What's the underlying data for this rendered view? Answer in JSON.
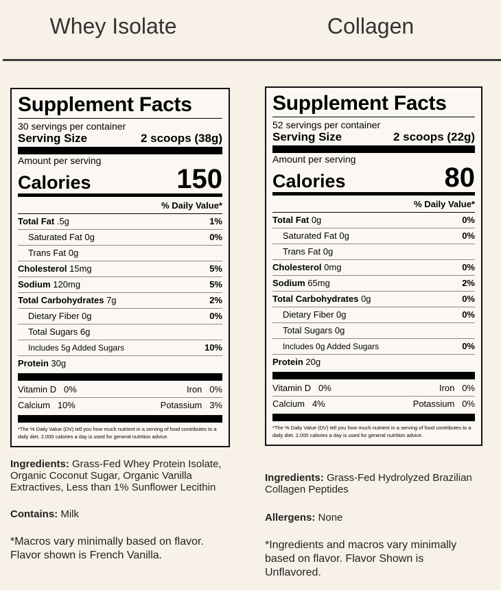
{
  "products": [
    {
      "name": "Whey Isolate",
      "facts": {
        "title": "Supplement Facts",
        "servings": "30 servings per container",
        "serving_size_label": "Serving Size",
        "serving_size": "2 scoops (38g)",
        "amount_label": "Amount per serving",
        "calories_label": "Calories",
        "calories": "150",
        "dv_header": "% Daily Value*",
        "rows": [
          {
            "label": "Total Fat",
            "amount": ".5g",
            "dv": "1%",
            "bold": true,
            "indent": 0
          },
          {
            "label": "Saturated Fat",
            "amount": "0g",
            "dv": "0%",
            "bold": false,
            "indent": 1
          },
          {
            "label": "Trans Fat",
            "amount": "0g",
            "bold": false,
            "indent": 1
          },
          {
            "label": "Cholesterol",
            "amount": "15mg",
            "dv": "5%",
            "bold": true,
            "indent": 0
          },
          {
            "label": "Sodium",
            "amount": "120mg",
            "dv": "5%",
            "bold": true,
            "indent": 0
          },
          {
            "label": "Total Carbohydrates",
            "amount": "7g",
            "dv": "2%",
            "bold": true,
            "indent": 0
          },
          {
            "label": "Dietary Fiber",
            "amount": "0g",
            "dv": "0%",
            "bold": false,
            "indent": 1
          },
          {
            "label": "Total Sugars",
            "amount": "6g",
            "bold": false,
            "indent": 1
          },
          {
            "label": "Includes 5g Added Sugars",
            "dv": "10%",
            "bold": false,
            "indent": 1
          },
          {
            "label": "Protein",
            "amount": "30g",
            "bold": true,
            "indent": 0
          }
        ],
        "vitamins": [
          [
            "Vitamin D",
            "0%",
            "Iron",
            "0%"
          ],
          [
            "Calcium",
            "10%",
            "Potassium",
            "3%"
          ]
        ],
        "footnote": "*The % Daily Value (DV) tell you how much nutrient in a serving of food contributes to a daily diet. 2,000 calories a day is used for general nutrition advice."
      },
      "ingredients_label": "Ingredients:",
      "ingredients": "Grass-Fed Whey Protein Isolate, Organic Coconut Sugar, Organic Vanilla Extractives, Less than 1% Sunflower Lecithin",
      "allergen_label": "Contains:",
      "allergen": "Milk",
      "note": "*Macros vary minimally based on flavor. Flavor shown is French Vanilla."
    },
    {
      "name": "Collagen",
      "facts": {
        "title": "Supplement Facts",
        "servings": "52 servings per container",
        "serving_size_label": "Serving Size",
        "serving_size": "2 scoops (22g)",
        "amount_label": "Amount per serving",
        "calories_label": "Calories",
        "calories": "80",
        "dv_header": "% Daily Value*",
        "rows": [
          {
            "label": "Total Fat",
            "amount": "0g",
            "dv": "0%",
            "bold": true,
            "indent": 0
          },
          {
            "label": "Saturated Fat",
            "amount": "0g",
            "dv": "0%",
            "bold": false,
            "indent": 1
          },
          {
            "label": "Trans Fat",
            "amount": "0g",
            "bold": false,
            "indent": 1
          },
          {
            "label": "Cholesterol",
            "amount": "0mg",
            "dv": "0%",
            "bold": true,
            "indent": 0
          },
          {
            "label": "Sodium",
            "amount": "65mg",
            "dv": "2%",
            "bold": true,
            "indent": 0
          },
          {
            "label": "Total Carbohydrates",
            "amount": "0g",
            "dv": "0%",
            "bold": true,
            "indent": 0
          },
          {
            "label": "Dietary Fiber",
            "amount": "0g",
            "dv": "0%",
            "bold": false,
            "indent": 1
          },
          {
            "label": "Total Sugars",
            "amount": "0g",
            "bold": false,
            "indent": 1
          },
          {
            "label": "Includes 0g Added Sugars",
            "dv": "0%",
            "bold": false,
            "indent": 1
          },
          {
            "label": "Protein",
            "amount": "20g",
            "bold": true,
            "indent": 0
          }
        ],
        "vitamins": [
          [
            "Vitamin D",
            "0%",
            "Iron",
            "0%"
          ],
          [
            "Calcium",
            "4%",
            "Potassium",
            "0%"
          ]
        ],
        "footnote": "*The % Daily Value (DV) tell you how much nutrient in a serving of food contributes to a daily diet. 2,000 calories a day is used for general nutrition advice."
      },
      "ingredients_label": "Ingredients:",
      "ingredients": "Grass-Fed Hydrolyzed Brazilian Collagen Peptides",
      "allergen_label": "Allergens:",
      "allergen": "None",
      "note": "*Ingredients and macros vary minimally based on flavor. Flavor Shown is Unflavored."
    }
  ]
}
